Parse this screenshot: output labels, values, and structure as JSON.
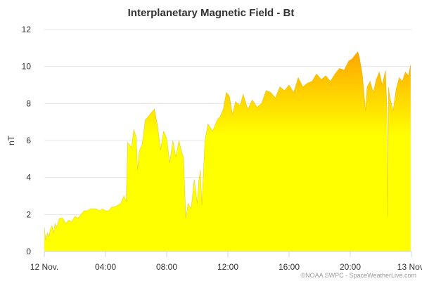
{
  "chart_data": {
    "type": "area",
    "title": "Interplanetary Magnetic Field - Bt",
    "ylabel": "nT",
    "xlabel": "",
    "credit": "©NOAA SWPC - SpaceWeatherLive.com",
    "ylim": [
      0,
      12
    ],
    "xlim": [
      0,
      24
    ],
    "y_ticks": [
      "0",
      "2",
      "4",
      "6",
      "8",
      "10",
      "12"
    ],
    "x_ticks": [
      {
        "x": 0,
        "label": "12 Nov."
      },
      {
        "x": 4,
        "label": "04:00"
      },
      {
        "x": 8,
        "label": "08:00"
      },
      {
        "x": 12,
        "label": "12:00"
      },
      {
        "x": 16,
        "label": "16:00"
      },
      {
        "x": 20,
        "label": "20:00"
      },
      {
        "x": 24,
        "label": "13 Nov."
      }
    ],
    "grid": true,
    "gradient_colors": [
      "#ffa500",
      "#ffff00"
    ],
    "series": [
      {
        "x": [
          0,
          0.1,
          0.2,
          0.3,
          0.4,
          0.5,
          0.6,
          0.7,
          0.8,
          1.0,
          1.2,
          1.4,
          1.6,
          1.8,
          2.0,
          2.2,
          2.4,
          2.6,
          2.8,
          3.0,
          3.2,
          3.4,
          3.6,
          3.8,
          4.0,
          4.2,
          4.4,
          4.6,
          4.8,
          5.0,
          5.2,
          5.35,
          5.45,
          5.55,
          5.7,
          5.85,
          6.0,
          6.1,
          6.2,
          6.4,
          6.6,
          6.8,
          7.0,
          7.2,
          7.4,
          7.6,
          7.8,
          8.0,
          8.2,
          8.4,
          8.6,
          8.8,
          9.0,
          9.1,
          9.25,
          9.4,
          9.6,
          9.8,
          10.0,
          10.1,
          10.2,
          10.3,
          10.5,
          10.7,
          11.0,
          11.3,
          11.5,
          11.7,
          11.9,
          12.1,
          12.3,
          12.5,
          12.8,
          13.0,
          13.3,
          13.6,
          13.9,
          14.2,
          14.5,
          14.8,
          15.1,
          15.4,
          15.7,
          16.0,
          16.3,
          16.6,
          16.9,
          17.2,
          17.5,
          17.8,
          18.1,
          18.4,
          18.7,
          19.0,
          19.3,
          19.6,
          19.9,
          20.1,
          20.3,
          20.5,
          20.6,
          20.8,
          21.0,
          21.1,
          21.3,
          21.5,
          21.7,
          21.9,
          22.1,
          22.3,
          22.4,
          22.45,
          22.5,
          22.6,
          22.8,
          23.0,
          23.2,
          23.4,
          23.6,
          23.8,
          23.95
        ],
        "y": [
          1.3,
          0.6,
          1.0,
          0.8,
          1.2,
          1.4,
          1.0,
          1.5,
          1.3,
          1.8,
          1.8,
          1.5,
          1.7,
          1.6,
          1.9,
          1.8,
          2.0,
          2.2,
          2.2,
          2.3,
          2.3,
          2.3,
          2.2,
          2.3,
          2.2,
          2.2,
          2.4,
          2.4,
          2.5,
          2.6,
          3.0,
          2.7,
          5.9,
          5.8,
          5.6,
          6.6,
          6.2,
          4.4,
          5.4,
          5.8,
          7.1,
          7.3,
          7.5,
          7.7,
          6.8,
          5.5,
          6.5,
          6.1,
          4.8,
          6.0,
          5.1,
          6.0,
          5.3,
          5.1,
          1.8,
          2.6,
          2.3,
          3.9,
          2.6,
          3.8,
          4.4,
          2.5,
          6.0,
          6.9,
          6.5,
          7.1,
          7.3,
          7.7,
          8.6,
          8.4,
          7.4,
          8.1,
          7.9,
          8.5,
          7.7,
          8.2,
          7.8,
          8.0,
          8.7,
          8.6,
          8.3,
          8.9,
          8.7,
          9.0,
          8.6,
          9.4,
          8.9,
          9.1,
          9.2,
          9.6,
          9.3,
          9.5,
          9.2,
          9.6,
          9.9,
          9.8,
          10.3,
          10.4,
          10.6,
          10.8,
          10.5,
          9.5,
          7.6,
          8.9,
          9.2,
          8.6,
          9.3,
          9.7,
          9.0,
          9.8,
          7.7,
          1.9,
          8.9,
          8.3,
          7.6,
          8.8,
          9.4,
          9.2,
          9.7,
          9.5,
          10.1
        ]
      }
    ]
  }
}
